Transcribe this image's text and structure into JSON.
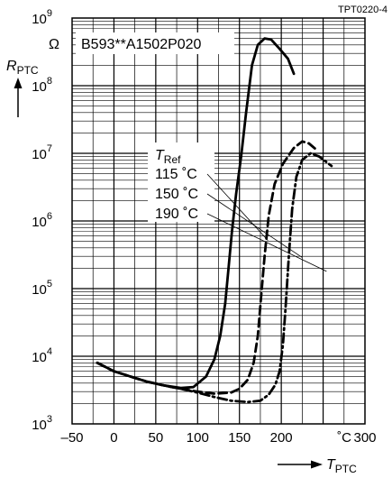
{
  "chart_data": {
    "type": "line",
    "figure_code": "TPT0220-4",
    "part_label": "B593**A1502P020",
    "ylabel_main": "R",
    "ylabel_sub": "PTC",
    "y_unit": "Ω",
    "xlabel_main": "T",
    "xlabel_sub": "PTC",
    "x_unit": "˚C",
    "x_scale": "linear",
    "y_scale": "log",
    "xlim": [
      -50,
      300
    ],
    "ylim": [
      1000,
      1000000000
    ],
    "grid": true,
    "x_ticks": [
      -50,
      0,
      50,
      100,
      150,
      200,
      300
    ],
    "x_tick_labels": [
      "–50",
      "0",
      "50",
      "100",
      "150",
      "200",
      "300"
    ],
    "y_ticks": [
      1000,
      10000,
      100000,
      1000000,
      10000000,
      100000000,
      1000000000
    ],
    "y_tick_labels": [
      {
        "base": "10",
        "exp": "3"
      },
      {
        "base": "10",
        "exp": "4"
      },
      {
        "base": "10",
        "exp": "5"
      },
      {
        "base": "10",
        "exp": "6"
      },
      {
        "base": "10",
        "exp": "7"
      },
      {
        "base": "10",
        "exp": "8"
      },
      {
        "base": "10",
        "exp": "9"
      }
    ],
    "legend": {
      "title_main": "T",
      "title_sub": "Ref",
      "entries": [
        "115 ˚C",
        "150 ˚C",
        "190 ˚C"
      ]
    },
    "series": [
      {
        "name": "115 ˚C",
        "style": "solid",
        "points": [
          [
            -20,
            8000
          ],
          [
            0,
            6000
          ],
          [
            20,
            5000
          ],
          [
            40,
            4200
          ],
          [
            60,
            3700
          ],
          [
            80,
            3400
          ],
          [
            95,
            3500
          ],
          [
            110,
            5000
          ],
          [
            120,
            9000
          ],
          [
            127,
            20000
          ],
          [
            133,
            60000
          ],
          [
            137,
            200000
          ],
          [
            141,
            700000
          ],
          [
            146,
            2500000
          ],
          [
            152,
            9000000
          ],
          [
            158,
            40000000
          ],
          [
            165,
            200000000
          ],
          [
            172,
            400000000
          ],
          [
            180,
            500000000
          ],
          [
            188,
            480000000
          ],
          [
            198,
            350000000
          ],
          [
            208,
            250000000
          ],
          [
            215,
            150000000
          ]
        ]
      },
      {
        "name": "150 ˚C",
        "style": "dashed",
        "points": [
          [
            -20,
            8000
          ],
          [
            0,
            6000
          ],
          [
            20,
            5000
          ],
          [
            40,
            4200
          ],
          [
            60,
            3700
          ],
          [
            80,
            3300
          ],
          [
            100,
            3000
          ],
          [
            120,
            2800
          ],
          [
            140,
            2900
          ],
          [
            150,
            3300
          ],
          [
            160,
            4500
          ],
          [
            167,
            8000
          ],
          [
            172,
            20000
          ],
          [
            176,
            80000
          ],
          [
            180,
            300000
          ],
          [
            185,
            1200000
          ],
          [
            192,
            3500000
          ],
          [
            202,
            7000000
          ],
          [
            215,
            12000000
          ],
          [
            225,
            15000000
          ],
          [
            233,
            14000000
          ],
          [
            243,
            11000000
          ]
        ]
      },
      {
        "name": "190 ˚C",
        "style": "dashdot",
        "points": [
          [
            -20,
            8000
          ],
          [
            0,
            6000
          ],
          [
            20,
            5000
          ],
          [
            40,
            4200
          ],
          [
            60,
            3700
          ],
          [
            80,
            3300
          ],
          [
            100,
            2900
          ],
          [
            120,
            2500
          ],
          [
            140,
            2200
          ],
          [
            160,
            2100
          ],
          [
            175,
            2200
          ],
          [
            185,
            2700
          ],
          [
            193,
            3800
          ],
          [
            198,
            6000
          ],
          [
            202,
            15000
          ],
          [
            205,
            50000
          ],
          [
            209,
            300000
          ],
          [
            213,
            1500000
          ],
          [
            218,
            4500000
          ],
          [
            225,
            8000000
          ],
          [
            235,
            10000000
          ],
          [
            245,
            9000000
          ],
          [
            260,
            6500000
          ]
        ]
      }
    ]
  }
}
